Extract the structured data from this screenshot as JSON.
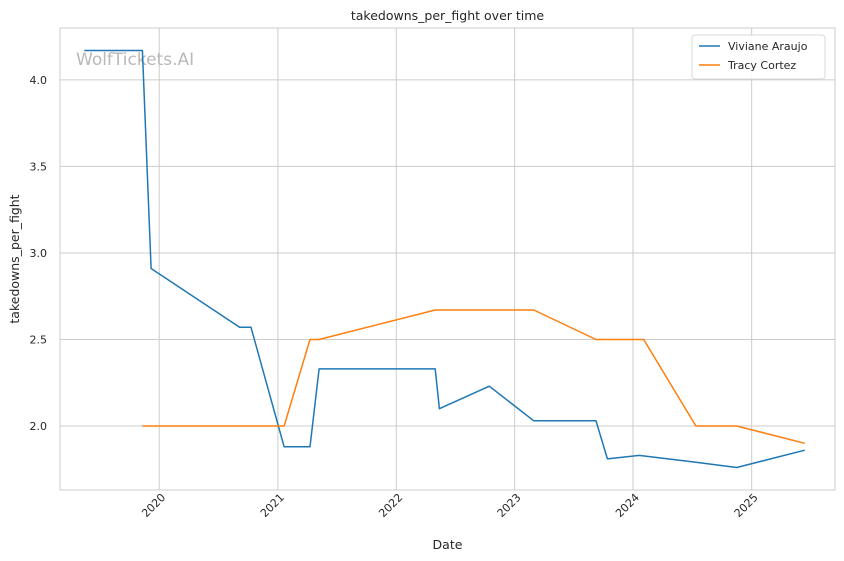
{
  "chart_data": {
    "type": "line",
    "title": "takedowns_per_fight over time",
    "xlabel": "Date",
    "ylabel": "takedowns_per_fight",
    "watermark": "WolfTickets.AI",
    "xlim": [
      "2019-03-01",
      "2025-09-15"
    ],
    "ylim": [
      1.63,
      4.3
    ],
    "x_ticks": [
      "2020-01-01",
      "2021-01-01",
      "2022-01-01",
      "2023-01-01",
      "2024-01-01",
      "2025-01-01"
    ],
    "x_tick_labels": [
      "2020",
      "2021",
      "2022",
      "2023",
      "2024",
      "2025"
    ],
    "y_ticks": [
      2.0,
      2.5,
      3.0,
      3.5,
      4.0
    ],
    "y_tick_labels": [
      "2.0",
      "2.5",
      "3.0",
      "3.5",
      "4.0"
    ],
    "grid": true,
    "legend_position": "top-right",
    "series": [
      {
        "name": "Viviane Araujo",
        "color": "#1f77b4",
        "points": [
          {
            "x": "2019-05-15",
            "y": 4.17
          },
          {
            "x": "2019-11-10",
            "y": 4.17
          },
          {
            "x": "2019-12-07",
            "y": 2.91
          },
          {
            "x": "2020-09-05",
            "y": 2.57
          },
          {
            "x": "2020-10-10",
            "y": 2.57
          },
          {
            "x": "2021-01-20",
            "y": 1.88
          },
          {
            "x": "2021-04-10",
            "y": 1.88
          },
          {
            "x": "2021-05-08",
            "y": 2.33
          },
          {
            "x": "2022-05-01",
            "y": 2.33
          },
          {
            "x": "2022-05-14",
            "y": 2.1
          },
          {
            "x": "2022-10-15",
            "y": 2.23
          },
          {
            "x": "2023-03-01",
            "y": 2.03
          },
          {
            "x": "2023-09-09",
            "y": 2.03
          },
          {
            "x": "2023-10-14",
            "y": 1.81
          },
          {
            "x": "2024-01-20",
            "y": 1.83
          },
          {
            "x": "2024-07-13",
            "y": 1.79
          },
          {
            "x": "2024-11-16",
            "y": 1.76
          },
          {
            "x": "2025-06-14",
            "y": 1.86
          }
        ]
      },
      {
        "name": "Tracy Cortez",
        "color": "#ff7f0e",
        "points": [
          {
            "x": "2019-11-10",
            "y": 2.0
          },
          {
            "x": "2021-01-20",
            "y": 2.0
          },
          {
            "x": "2021-04-10",
            "y": 2.5
          },
          {
            "x": "2021-05-08",
            "y": 2.5
          },
          {
            "x": "2022-05-01",
            "y": 2.67
          },
          {
            "x": "2023-03-01",
            "y": 2.67
          },
          {
            "x": "2023-09-09",
            "y": 2.5
          },
          {
            "x": "2024-02-03",
            "y": 2.5
          },
          {
            "x": "2024-07-13",
            "y": 2.0
          },
          {
            "x": "2024-11-16",
            "y": 2.0
          },
          {
            "x": "2025-06-14",
            "y": 1.9
          }
        ]
      }
    ]
  }
}
